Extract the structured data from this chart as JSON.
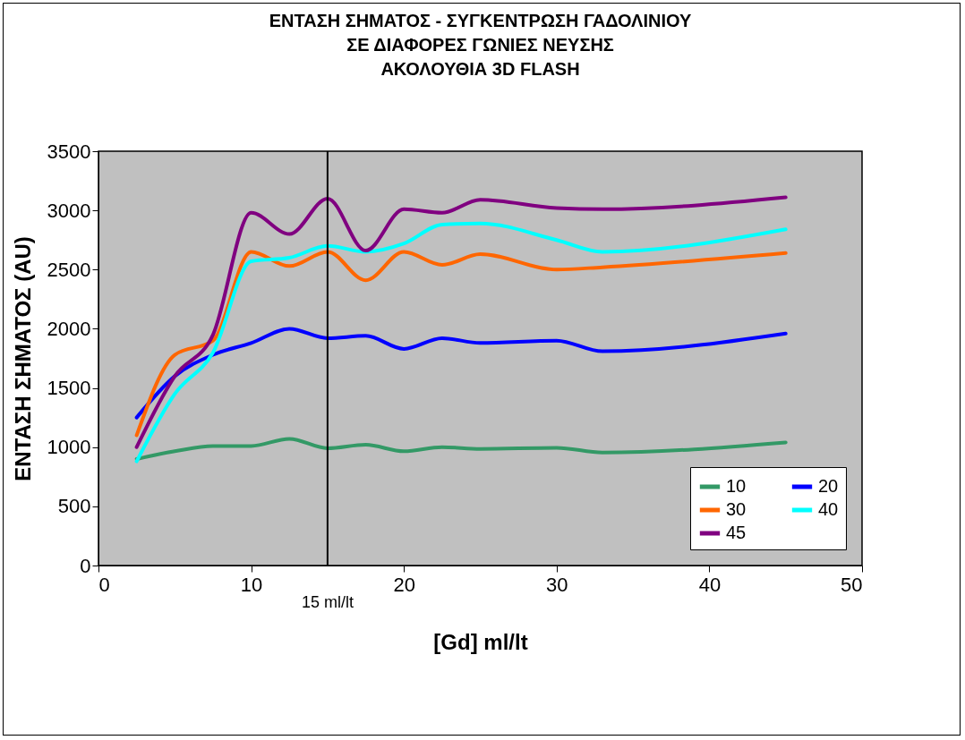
{
  "chart_data": {
    "type": "line",
    "title": "ΕΝΤΑΣΗ ΣΗΜΑΤΟΣ - ΣΥΓΚΕΝΤΡΩΣΗ ΓΑΔΟΛΙΝΙΟΥ\nΣΕ ΔΙΑΦΟΡΕΣ ΓΩΝΙΕΣ ΝΕΥΣΗΣ\nΑΚΟΛΟΥΘΙΑ 3D FLASH",
    "xlabel": "[Gd] ml/lt",
    "ylabel": "ΕΝΤΑΣΗ ΣΗΜΑΤΟΣ (AU)",
    "x": [
      2.5,
      5,
      7.5,
      10,
      12.5,
      15,
      17.5,
      20,
      22.5,
      25,
      30,
      33,
      45
    ],
    "series": [
      {
        "name": "10",
        "color": "#339966",
        "values": [
          900,
          965,
          1010,
          1010,
          1070,
          990,
          1020,
          965,
          1000,
          985,
          995,
          955,
          1040
        ]
      },
      {
        "name": "20",
        "color": "#0000ff",
        "values": [
          1250,
          1600,
          1780,
          1880,
          2000,
          1920,
          1940,
          1830,
          1920,
          1880,
          1900,
          1810,
          1960
        ]
      },
      {
        "name": "30",
        "color": "#ff6600",
        "values": [
          1100,
          1780,
          1900,
          2650,
          2530,
          2650,
          2410,
          2650,
          2540,
          2630,
          2500,
          2520,
          2640
        ]
      },
      {
        "name": "40",
        "color": "#00ffff",
        "values": [
          880,
          1450,
          1800,
          2570,
          2600,
          2700,
          2650,
          2720,
          2880,
          2890,
          2750,
          2650,
          2840
        ]
      },
      {
        "name": "45",
        "color": "#800080",
        "values": [
          1000,
          1600,
          1950,
          2980,
          2800,
          3100,
          2660,
          3010,
          2980,
          3090,
          3020,
          3010,
          3110
        ]
      }
    ],
    "xlim": [
      0,
      50
    ],
    "xticks": [
      0,
      10,
      20,
      30,
      40,
      50
    ],
    "ylim": [
      0,
      3500
    ],
    "yticks": [
      0,
      500,
      1000,
      1500,
      2000,
      2500,
      3000,
      3500
    ],
    "grid": false,
    "legend": "bottom right",
    "line_style": "solid",
    "ref_lines": [
      {
        "axis": "x",
        "value": 15,
        "label": "15 ml/lt",
        "color": "#000000"
      }
    ]
  }
}
